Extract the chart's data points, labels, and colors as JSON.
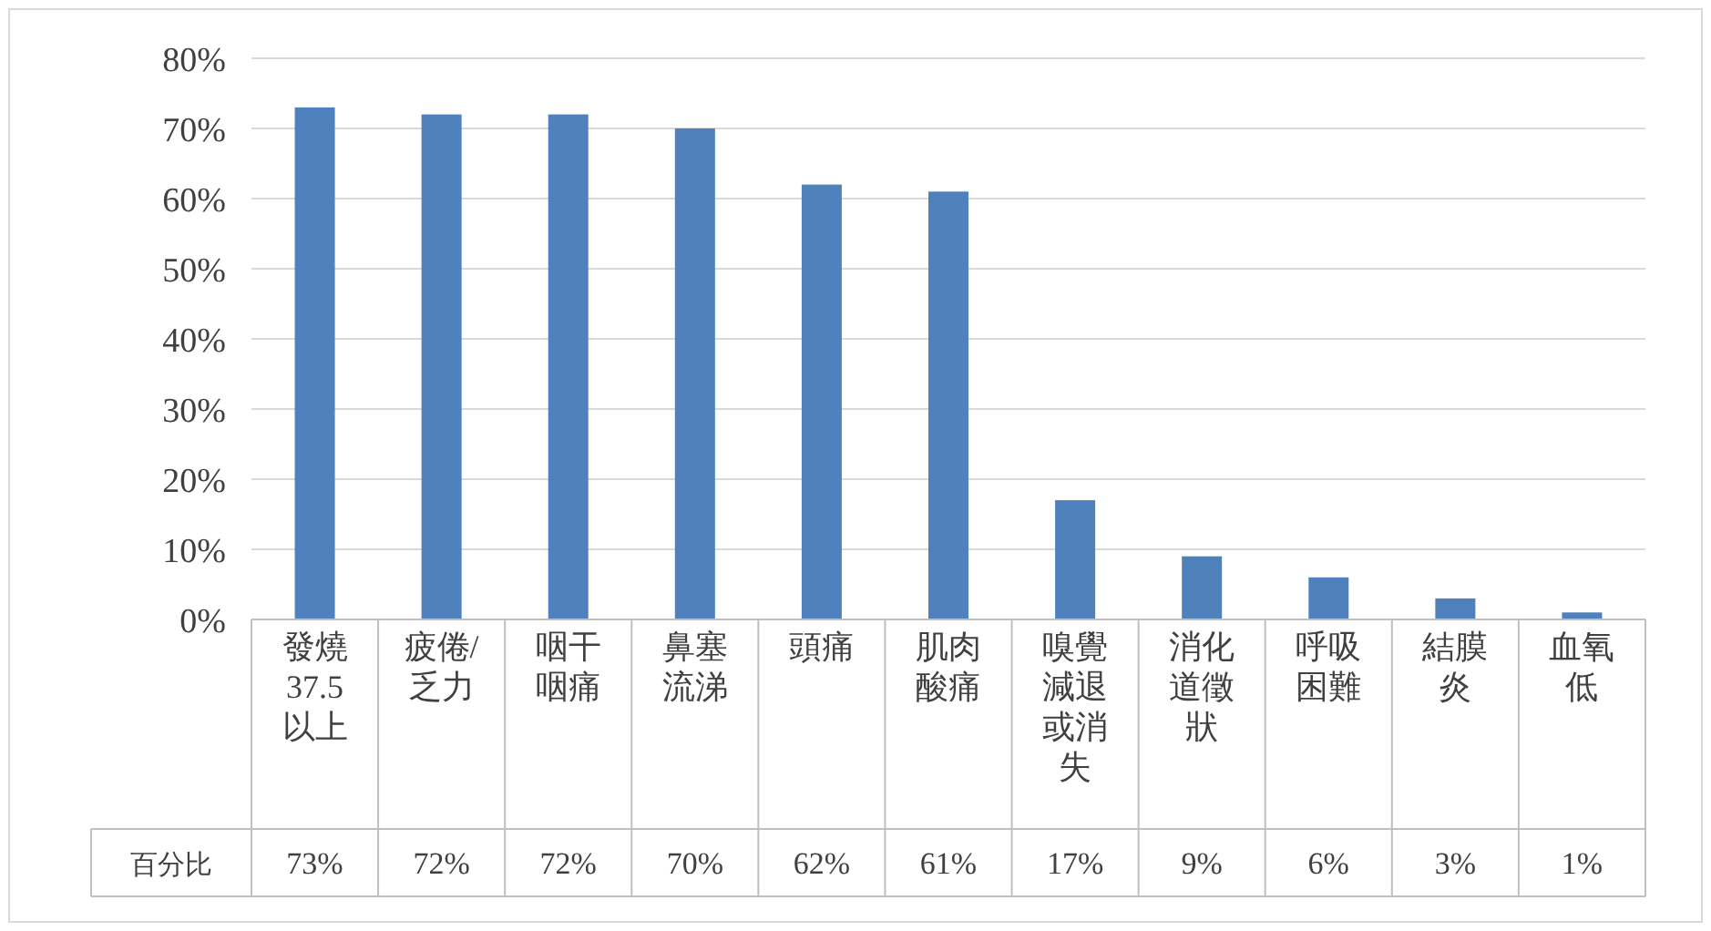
{
  "chart_data": {
    "type": "bar",
    "categories": [
      "發燒37.5以上",
      "疲倦/乏力",
      "咽干咽痛",
      "鼻塞流涕",
      "頭痛",
      "肌肉酸痛",
      "嗅覺減退或消失",
      "消化道徵狀",
      "呼吸困難",
      "結膜炎",
      "血氧低"
    ],
    "series": [
      {
        "name": "百分比",
        "color": "#4f81bd",
        "values": [
          73,
          72,
          72,
          70,
          62,
          61,
          17,
          9,
          6,
          3,
          1
        ],
        "value_labels": [
          "73%",
          "72%",
          "72%",
          "70%",
          "62%",
          "61%",
          "17%",
          "9%",
          "6%",
          "3%",
          "1%"
        ]
      }
    ],
    "ylim": [
      0,
      80
    ],
    "yticks": [
      {
        "value": 0,
        "label": "0%"
      },
      {
        "value": 10,
        "label": "10%"
      },
      {
        "value": 20,
        "label": "20%"
      },
      {
        "value": 30,
        "label": "30%"
      },
      {
        "value": 40,
        "label": "40%"
      },
      {
        "value": 50,
        "label": "50%"
      },
      {
        "value": 60,
        "label": "60%"
      },
      {
        "value": 70,
        "label": "70%"
      },
      {
        "value": 80,
        "label": "80%"
      }
    ],
    "grid": "y"
  }
}
